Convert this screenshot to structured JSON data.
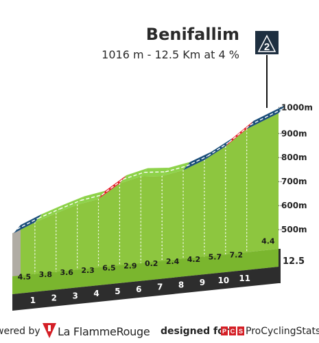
{
  "climb": {
    "name": "Benifallim",
    "subtitle": "1016 m - 12.5 Km at 4 %",
    "category": "2"
  },
  "chart_data": {
    "type": "area",
    "title": "Benifallim",
    "subtitle": "1016 m - 12.5 Km at 4 %",
    "x_unit": "km",
    "y_unit": "m",
    "xlim": [
      0,
      12.5
    ],
    "ylim": [
      500,
      1000
    ],
    "y_ticks": [
      "500m",
      "600m",
      "700m",
      "800m",
      "900m",
      "1000m"
    ],
    "distance_label": "12.5",
    "segments": [
      {
        "km": "1",
        "gradient": 4.5
      },
      {
        "km": "2",
        "gradient": 3.8
      },
      {
        "km": "3",
        "gradient": 3.6
      },
      {
        "km": "4",
        "gradient": 2.3
      },
      {
        "km": "5",
        "gradient": 6.5
      },
      {
        "km": "6",
        "gradient": 2.9
      },
      {
        "km": "7",
        "gradient": 0.2
      },
      {
        "km": "8",
        "gradient": 2.4
      },
      {
        "km": "9",
        "gradient": 4.2
      },
      {
        "km": "10",
        "gradient": 5.7
      },
      {
        "km": "11",
        "gradient": 7.2
      },
      {
        "km": "",
        "gradient": 4.4
      }
    ],
    "colors": {
      "side": "#8dc63f",
      "side_mid": "#7ab62e",
      "base": "#2d2d2d",
      "base_text": "#ffffff",
      "gradient_text": "#1a1a1a",
      "start_side": "#b0aca4",
      "ribbon_green": "#8ed24a",
      "ribbon_blue": "#1c4f7a",
      "ribbon_red": "#e3202a",
      "axis_text": "#222222"
    }
  },
  "footer": {
    "powered_by": "wered by",
    "brand": "La FlammeRouge",
    "designed_for": "designed for",
    "pcs_badge": "PCS",
    "pcs_name": "ProCyclingStats"
  }
}
